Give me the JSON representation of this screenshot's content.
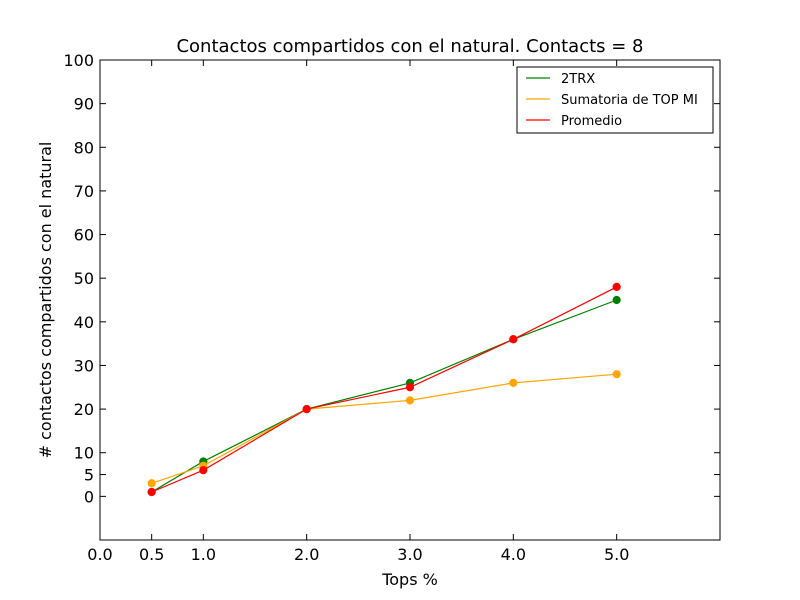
{
  "chart_data": {
    "type": "line",
    "title": "Contactos compartidos con el natural. Contacts = 8",
    "xlabel": "Tops %",
    "ylabel": "# contactos compartidos con el natural",
    "xlim": [
      0.0,
      6.0
    ],
    "ylim": [
      -10,
      100
    ],
    "x_ticks": [
      0.0,
      0.5,
      1.0,
      2.0,
      3.0,
      4.0,
      5.0
    ],
    "x_tick_labels": [
      "0.0",
      "0.5",
      "1.0",
      "2.0",
      "3.0",
      "4.0",
      "5.0"
    ],
    "y_ticks": [
      0,
      5,
      10,
      20,
      30,
      40,
      50,
      60,
      70,
      80,
      90,
      100
    ],
    "y_tick_labels": [
      "0",
      "5",
      "10",
      "20",
      "30",
      "40",
      "50",
      "60",
      "70",
      "80",
      "90",
      "100"
    ],
    "grid": false,
    "legend_position": "top-right",
    "x": [
      0.5,
      1.0,
      2.0,
      3.0,
      4.0,
      5.0
    ],
    "series": [
      {
        "name": "2TRX",
        "color": "#008000",
        "values": [
          1,
          8,
          20,
          26,
          36,
          45
        ]
      },
      {
        "name": "Sumatoria de TOP MI",
        "color": "#FFA500",
        "values": [
          3,
          7,
          20,
          22,
          26,
          28
        ]
      },
      {
        "name": "Promedio",
        "color": "#FF0000",
        "values": [
          1,
          6,
          20,
          25,
          36,
          48
        ]
      }
    ]
  }
}
